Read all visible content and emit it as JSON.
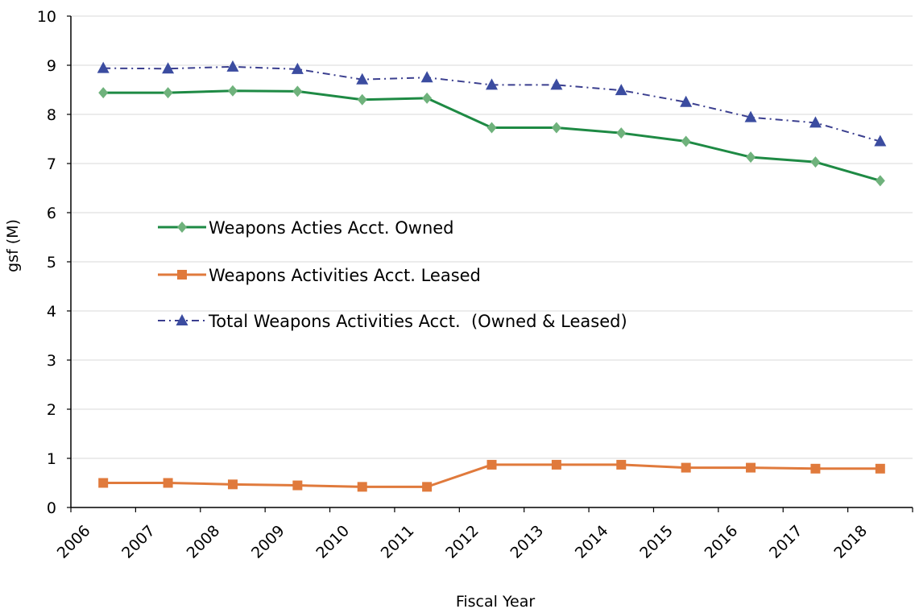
{
  "chart_data": {
    "type": "line",
    "title": "",
    "xlabel": "Fiscal Year",
    "ylabel": "gsf (M)",
    "categories": [
      "2006",
      "2007",
      "2008",
      "2009",
      "2010",
      "2011",
      "2012",
      "2013",
      "2014",
      "2015",
      "2016",
      "2017",
      "2018"
    ],
    "ylim": [
      0,
      10
    ],
    "yticks": [
      "0",
      "1",
      "2",
      "3",
      "4",
      "5",
      "6",
      "7",
      "8",
      "9",
      "10"
    ],
    "grid": true,
    "legend_placement": "center-left",
    "series": [
      {
        "name": "Weapons Acties Acct. Owned",
        "marker": "diamond",
        "line_style": "solid",
        "color": "#1e8a44",
        "marker_color": "#6fb27c",
        "values": [
          8.44,
          8.44,
          8.48,
          8.47,
          8.3,
          8.33,
          7.73,
          7.73,
          7.62,
          7.45,
          7.13,
          7.03,
          6.65
        ]
      },
      {
        "name": "Weapons Activities Acct. Leased",
        "marker": "square",
        "line_style": "solid",
        "color": "#e07a3c",
        "marker_color": "#e07a3c",
        "values": [
          0.5,
          0.5,
          0.47,
          0.45,
          0.42,
          0.42,
          0.87,
          0.87,
          0.87,
          0.81,
          0.81,
          0.79,
          0.79
        ]
      },
      {
        "name": "Total Weapons Activities Acct.  (Owned & Leased)",
        "marker": "triangle",
        "line_style": "dash-dot",
        "color": "#3b3f8f",
        "marker_color": "#3b4ca0",
        "values": [
          8.94,
          8.93,
          8.97,
          8.92,
          8.71,
          8.75,
          8.6,
          8.6,
          8.49,
          8.25,
          7.94,
          7.83,
          7.45
        ]
      }
    ]
  }
}
